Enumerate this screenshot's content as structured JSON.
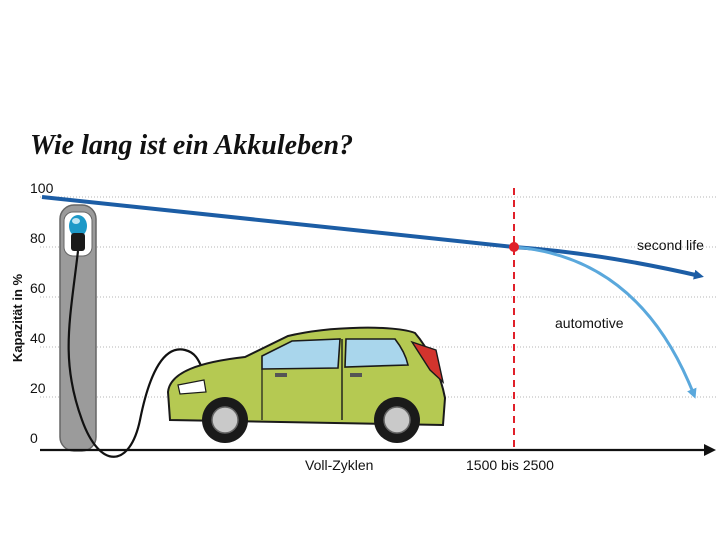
{
  "chart_data": {
    "type": "line",
    "title": "Wie lang ist ein Akkuleben?",
    "xlabel": "Voll-Zyklen",
    "ylabel": "Kapazität in %",
    "y_ticks": [
      "100",
      "80",
      "60",
      "40",
      "20",
      "0"
    ],
    "x_marker_label": "1500 bis 2500",
    "ylim": [
      0,
      100
    ],
    "grid": true,
    "series": [
      {
        "name": "second life",
        "color": "#1c5da5",
        "values": [
          100,
          80,
          72
        ]
      },
      {
        "name": "automotive",
        "color": "#5aa8dc",
        "values": [
          80,
          65,
          20
        ]
      }
    ],
    "marker": {
      "color": "#e0202a",
      "value": 80
    },
    "illustration": [
      "charging-station",
      "charging-cable",
      "green-car"
    ]
  }
}
